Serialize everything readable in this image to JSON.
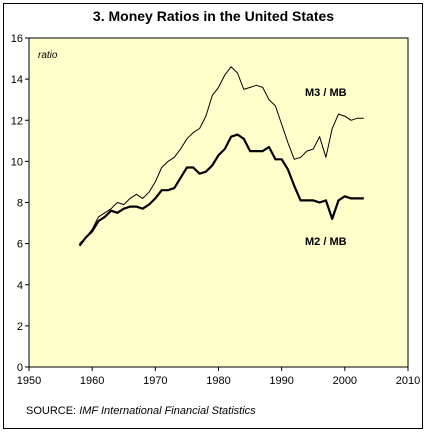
{
  "chart_data": {
    "type": "line",
    "title": "3. Money Ratios in the United States",
    "ylabel": "ratio",
    "xlabel": "",
    "xlim": [
      1950,
      2010
    ],
    "ylim": [
      0,
      16
    ],
    "x_ticks": [
      "1950",
      "1960",
      "1970",
      "1980",
      "1990",
      "2000",
      "2010"
    ],
    "y_ticks": [
      "0",
      "2",
      "4",
      "6",
      "8",
      "10",
      "12",
      "14",
      "16"
    ],
    "plot_background": "#ffffcc",
    "grid": false,
    "series": [
      {
        "name": "M3 / MB",
        "color": "#000000",
        "line_weight": "thin",
        "x": [
          1958,
          1959,
          1960,
          1961,
          1962,
          1963,
          1964,
          1965,
          1966,
          1967,
          1968,
          1969,
          1970,
          1971,
          1972,
          1973,
          1974,
          1975,
          1976,
          1977,
          1978,
          1979,
          1980,
          1981,
          1982,
          1983,
          1984,
          1985,
          1986,
          1987,
          1988,
          1989,
          1990,
          1991,
          1992,
          1993,
          1994,
          1995,
          1996,
          1997,
          1998,
          1999,
          2000,
          2001,
          2002,
          2003
        ],
        "values": [
          6.0,
          6.3,
          6.7,
          7.3,
          7.5,
          7.7,
          8.0,
          7.9,
          8.2,
          8.4,
          8.2,
          8.5,
          9.0,
          9.7,
          10.0,
          10.2,
          10.6,
          11.1,
          11.4,
          11.6,
          12.2,
          13.2,
          13.6,
          14.2,
          14.6,
          14.3,
          13.5,
          13.6,
          13.7,
          13.6,
          13.0,
          12.7,
          11.8,
          10.9,
          10.1,
          10.2,
          10.5,
          10.6,
          11.2,
          10.2,
          11.6,
          12.3,
          12.2,
          12.0,
          12.1,
          12.1
        ]
      },
      {
        "name": "M2 / MB",
        "color": "#000000",
        "line_weight": "thick",
        "x": [
          1958,
          1959,
          1960,
          1961,
          1962,
          1963,
          1964,
          1965,
          1966,
          1967,
          1968,
          1969,
          1970,
          1971,
          1972,
          1973,
          1974,
          1975,
          1976,
          1977,
          1978,
          1979,
          1980,
          1981,
          1982,
          1983,
          1984,
          1985,
          1986,
          1987,
          1988,
          1989,
          1990,
          1991,
          1992,
          1993,
          1994,
          1995,
          1996,
          1997,
          1998,
          1999,
          2000,
          2001,
          2002,
          2003
        ],
        "values": [
          5.9,
          6.3,
          6.6,
          7.1,
          7.3,
          7.6,
          7.5,
          7.7,
          7.8,
          7.8,
          7.7,
          7.9,
          8.2,
          8.6,
          8.6,
          8.7,
          9.2,
          9.7,
          9.7,
          9.4,
          9.5,
          9.8,
          10.3,
          10.6,
          11.2,
          11.3,
          11.1,
          10.5,
          10.5,
          10.5,
          10.7,
          10.1,
          10.1,
          9.6,
          8.8,
          8.1,
          8.1,
          8.1,
          8.0,
          8.1,
          7.2,
          8.1,
          8.3,
          8.2,
          8.2,
          8.2
        ]
      }
    ]
  },
  "source": {
    "label": "SOURCE:",
    "text": "IMF International Financial Statistics"
  }
}
